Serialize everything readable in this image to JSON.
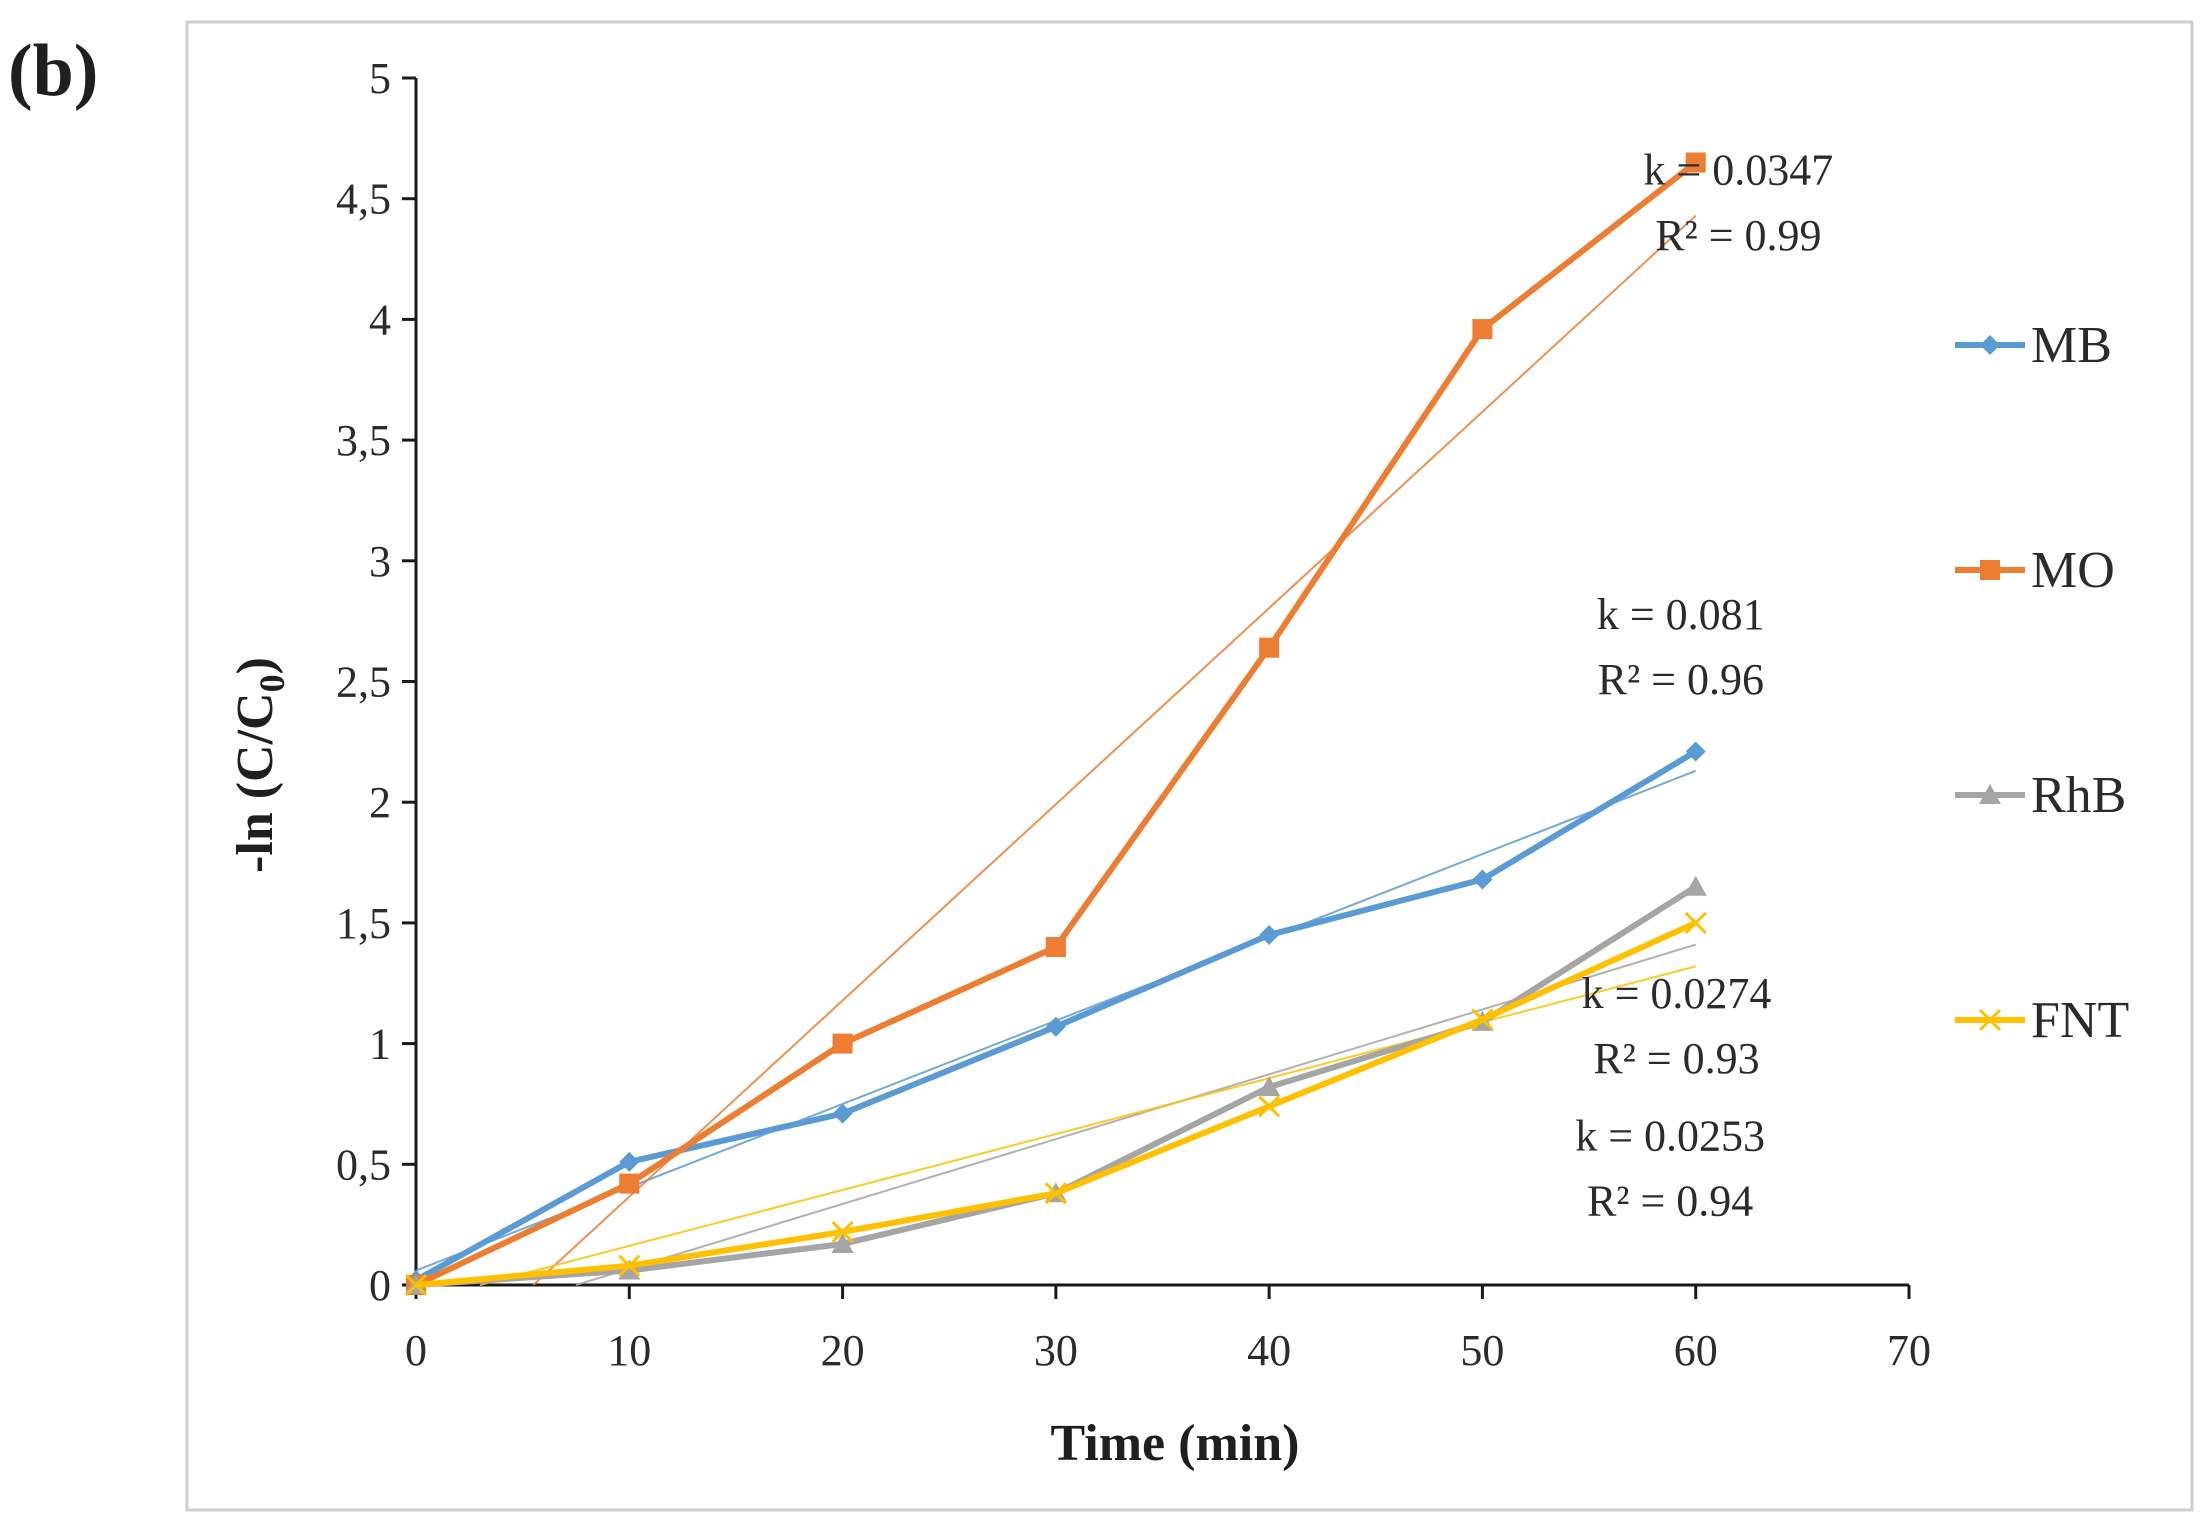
{
  "panel_label": "(b)",
  "chart_data": {
    "type": "line",
    "title": "",
    "xlabel": "Time (min)",
    "ylabel_main": "-ln (C/C",
    "ylabel_sub": "0",
    "ylabel_close": ")",
    "xlim": [
      0,
      70
    ],
    "ylim": [
      0,
      5
    ],
    "x_ticks": [
      0,
      10,
      20,
      30,
      40,
      50,
      60,
      70
    ],
    "x_tick_labels": [
      "0",
      "10",
      "20",
      "30",
      "40",
      "50",
      "60",
      "70"
    ],
    "y_ticks": [
      0,
      0.5,
      1,
      1.5,
      2,
      2.5,
      3,
      3.5,
      4,
      4.5,
      5
    ],
    "y_tick_labels": [
      "0",
      "0,5",
      "1",
      "1,5",
      "2",
      "2,5",
      "3",
      "3,5",
      "4",
      "4,5",
      "5"
    ],
    "grid": false,
    "legend_position": "right",
    "x": [
      0,
      10,
      20,
      30,
      40,
      50,
      60
    ],
    "series": [
      {
        "name": "MB",
        "color": "#5b9bd5",
        "marker": "diamond",
        "values": [
          0.02,
          0.51,
          0.71,
          1.07,
          1.45,
          1.68,
          2.21
        ],
        "trendline": {
          "x_start": 0,
          "y_start": 0.06,
          "x_end": 60,
          "y_end": 2.13
        }
      },
      {
        "name": "MO",
        "color": "#ed7d31",
        "marker": "square",
        "values": [
          0.0,
          0.42,
          1.0,
          1.4,
          2.64,
          3.96,
          4.65
        ],
        "trendline": {
          "x_start": 5.5,
          "y_start": 0.0,
          "x_end": 60,
          "y_end": 4.43
        }
      },
      {
        "name": "RhB",
        "color": "#a5a5a5",
        "marker": "triangle",
        "values": [
          0.0,
          0.06,
          0.17,
          0.38,
          0.82,
          1.09,
          1.65
        ],
        "trendline": {
          "x_start": 7.5,
          "y_start": 0.0,
          "x_end": 60,
          "y_end": 1.41
        }
      },
      {
        "name": "FNT",
        "color": "#ffc000",
        "marker": "x",
        "values": [
          0.0,
          0.08,
          0.22,
          0.38,
          0.74,
          1.1,
          1.5
        ],
        "trendline": {
          "x_start": 3,
          "y_start": 0.0,
          "x_end": 60,
          "y_end": 1.32
        }
      }
    ],
    "annotations": [
      {
        "k": "k = 0.0347",
        "r2": "R² = 0.99",
        "x": 62,
        "y": 4.62,
        "y2": 4.35
      },
      {
        "k": "k = 0.081",
        "r2": "R² = 0.96",
        "x": 59.3,
        "y": 2.78,
        "y2": 2.51
      },
      {
        "k": "k = 0.0274",
        "r2": "R² = 0.93",
        "x": 59.1,
        "y": 1.21,
        "y2": 0.94
      },
      {
        "k": "k = 0.0253",
        "r2": "R² = 0.94",
        "x": 58.8,
        "y": 0.62,
        "y2": 0.35
      }
    ]
  }
}
